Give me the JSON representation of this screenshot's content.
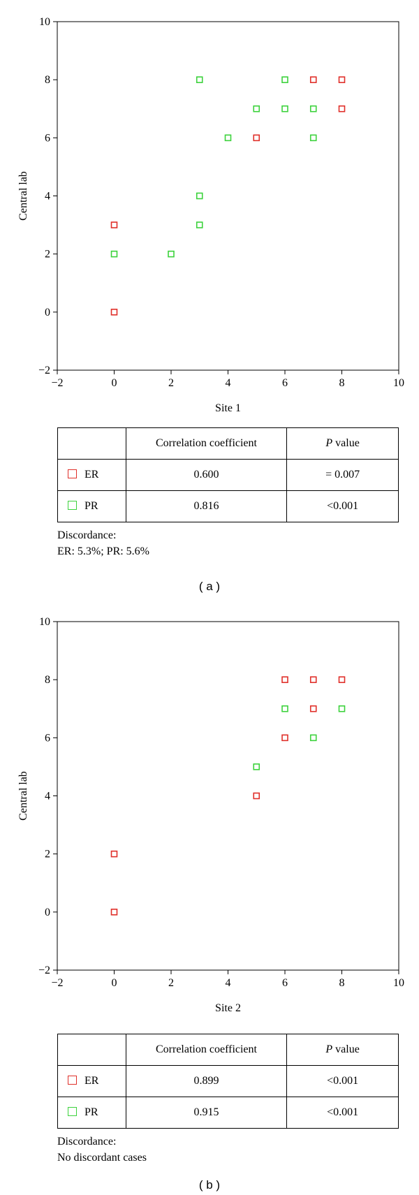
{
  "chart_data": [
    {
      "type": "scatter",
      "title": "",
      "xlabel": "Site 1",
      "ylabel": "Central lab",
      "xlim": [
        -2,
        10
      ],
      "ylim": [
        -2,
        10
      ],
      "xticks": [
        -2,
        0,
        2,
        4,
        6,
        8,
        10
      ],
      "yticks": [
        -2,
        0,
        2,
        4,
        6,
        8,
        10
      ],
      "grid": false,
      "series": [
        {
          "name": "ER",
          "color": "#e0302a",
          "points": [
            [
              0,
              0
            ],
            [
              0,
              3
            ],
            [
              5,
              6
            ],
            [
              7,
              8
            ],
            [
              8,
              8
            ],
            [
              8,
              7
            ]
          ]
        },
        {
          "name": "PR",
          "color": "#3cd23c",
          "points": [
            [
              0,
              2
            ],
            [
              2,
              2
            ],
            [
              3,
              3
            ],
            [
              3,
              4
            ],
            [
              3,
              8
            ],
            [
              4,
              6
            ],
            [
              5,
              7
            ],
            [
              6,
              7
            ],
            [
              6,
              8
            ],
            [
              7,
              7
            ],
            [
              7,
              6
            ]
          ]
        }
      ]
    },
    {
      "type": "scatter",
      "title": "",
      "xlabel": "Site 2",
      "ylabel": "Central lab",
      "xlim": [
        -2,
        10
      ],
      "ylim": [
        -2,
        10
      ],
      "xticks": [
        -2,
        0,
        2,
        4,
        6,
        8,
        10
      ],
      "yticks": [
        -2,
        0,
        2,
        4,
        6,
        8,
        10
      ],
      "grid": false,
      "series": [
        {
          "name": "ER",
          "color": "#e0302a",
          "points": [
            [
              0,
              0
            ],
            [
              0,
              2
            ],
            [
              5,
              4
            ],
            [
              6,
              6
            ],
            [
              6,
              8
            ],
            [
              7,
              7
            ],
            [
              7,
              8
            ],
            [
              8,
              8
            ]
          ]
        },
        {
          "name": "PR",
          "color": "#3cd23c",
          "points": [
            [
              5,
              5
            ],
            [
              6,
              7
            ],
            [
              7,
              6
            ],
            [
              8,
              7
            ]
          ]
        }
      ]
    }
  ],
  "panels": [
    {
      "caption": "( a )",
      "table": {
        "header": {
          "coef": "Correlation coefficient",
          "p_italic": "P",
          "p_rest": " value"
        },
        "rows": [
          {
            "series": "ER",
            "color": "#e0302a",
            "coef": "0.600",
            "p": "= 0.007"
          },
          {
            "series": "PR",
            "color": "#3cd23c",
            "coef": "0.816",
            "p": "<0.001"
          }
        ]
      },
      "note": {
        "line1": "Discordance:",
        "line2": "ER: 5.3%; PR: 5.6%"
      }
    },
    {
      "caption": "( b )",
      "table": {
        "header": {
          "coef": "Correlation coefficient",
          "p_italic": "P",
          "p_rest": " value"
        },
        "rows": [
          {
            "series": "ER",
            "color": "#e0302a",
            "coef": "0.899",
            "p": "<0.001"
          },
          {
            "series": "PR",
            "color": "#3cd23c",
            "coef": "0.915",
            "p": "<0.001"
          }
        ]
      },
      "note": {
        "line1": "Discordance:",
        "line2": "No discordant cases"
      }
    }
  ]
}
